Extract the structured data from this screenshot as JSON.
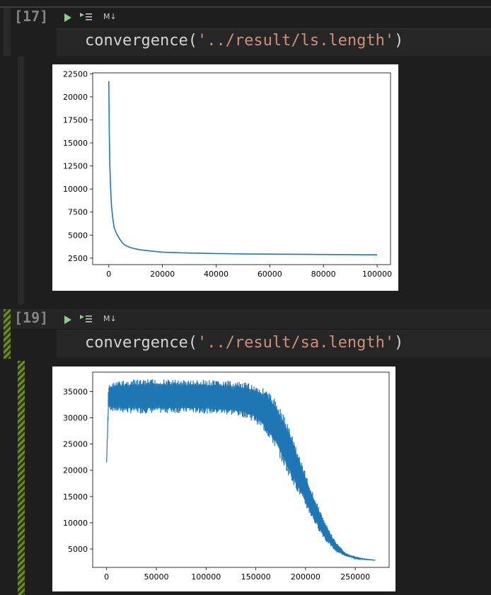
{
  "cells": [
    {
      "execution_label": "[17]",
      "toolbar": {
        "run_icon": "run-icon",
        "run_below_icon": "run-below-icon",
        "markdown_label": "M↓"
      },
      "code": {
        "func": "convergence(",
        "str": "'../result/ls.length'",
        "close": ")"
      }
    },
    {
      "execution_label": "[19]",
      "toolbar": {
        "run_icon": "run-icon",
        "run_below_icon": "run-below-icon",
        "markdown_label": "M↓"
      },
      "code": {
        "func": "convergence(",
        "str": "'../result/sa.length'",
        "close": ")"
      }
    }
  ],
  "chart_data": [
    {
      "type": "line",
      "title": "",
      "xlabel": "",
      "ylabel": "",
      "xlim": [
        -6000,
        105000
      ],
      "ylim": [
        1800,
        22600
      ],
      "x_ticks": [
        0,
        20000,
        40000,
        60000,
        80000,
        100000
      ],
      "y_ticks": [
        2500,
        5000,
        7500,
        10000,
        12500,
        15000,
        17500,
        20000,
        22500
      ],
      "line_color": "#1f77b4",
      "series": [
        {
          "x": [
            0,
            200,
            400,
            700,
            1000,
            1500,
            2000,
            3000,
            4000,
            5000,
            6000,
            8000,
            10000,
            12000,
            15000,
            18000,
            20000,
            25000,
            30000,
            35000,
            40000,
            45000,
            50000,
            60000,
            70000,
            80000,
            90000,
            100000
          ],
          "y": [
            21700,
            16000,
            12500,
            10000,
            8200,
            6800,
            5800,
            5100,
            4600,
            4200,
            3900,
            3650,
            3500,
            3400,
            3300,
            3200,
            3150,
            3100,
            3050,
            3030,
            3000,
            2980,
            2960,
            2940,
            2920,
            2900,
            2880,
            2860
          ]
        }
      ]
    },
    {
      "type": "line",
      "title": "",
      "xlabel": "",
      "ylabel": "",
      "xlim": [
        -14000,
        284000
      ],
      "ylim": [
        1500,
        38700
      ],
      "x_ticks": [
        0,
        50000,
        100000,
        150000,
        200000,
        250000
      ],
      "y_ticks": [
        5000,
        10000,
        15000,
        20000,
        25000,
        30000,
        35000
      ],
      "line_color": "#1f77b4",
      "series": [
        {
          "x": [
            0,
            2000,
            10000,
            25000,
            50000,
            75000,
            100000,
            125000,
            140000,
            150000,
            160000,
            170000,
            180000,
            190000,
            200000,
            210000,
            220000,
            230000,
            240000,
            250000,
            260000,
            270000
          ],
          "upper": [
            21500,
            36500,
            37000,
            37300,
            37400,
            37300,
            37200,
            37000,
            36700,
            36300,
            35500,
            33500,
            30000,
            25000,
            19500,
            14500,
            10000,
            6500,
            4300,
            3400,
            3100,
            2900
          ],
          "lower": [
            21500,
            31500,
            31000,
            30800,
            30800,
            30900,
            30800,
            30500,
            30000,
            29000,
            27000,
            24000,
            20000,
            16500,
            13000,
            9500,
            6500,
            4500,
            3600,
            3200,
            3000,
            2850
          ]
        }
      ]
    }
  ]
}
